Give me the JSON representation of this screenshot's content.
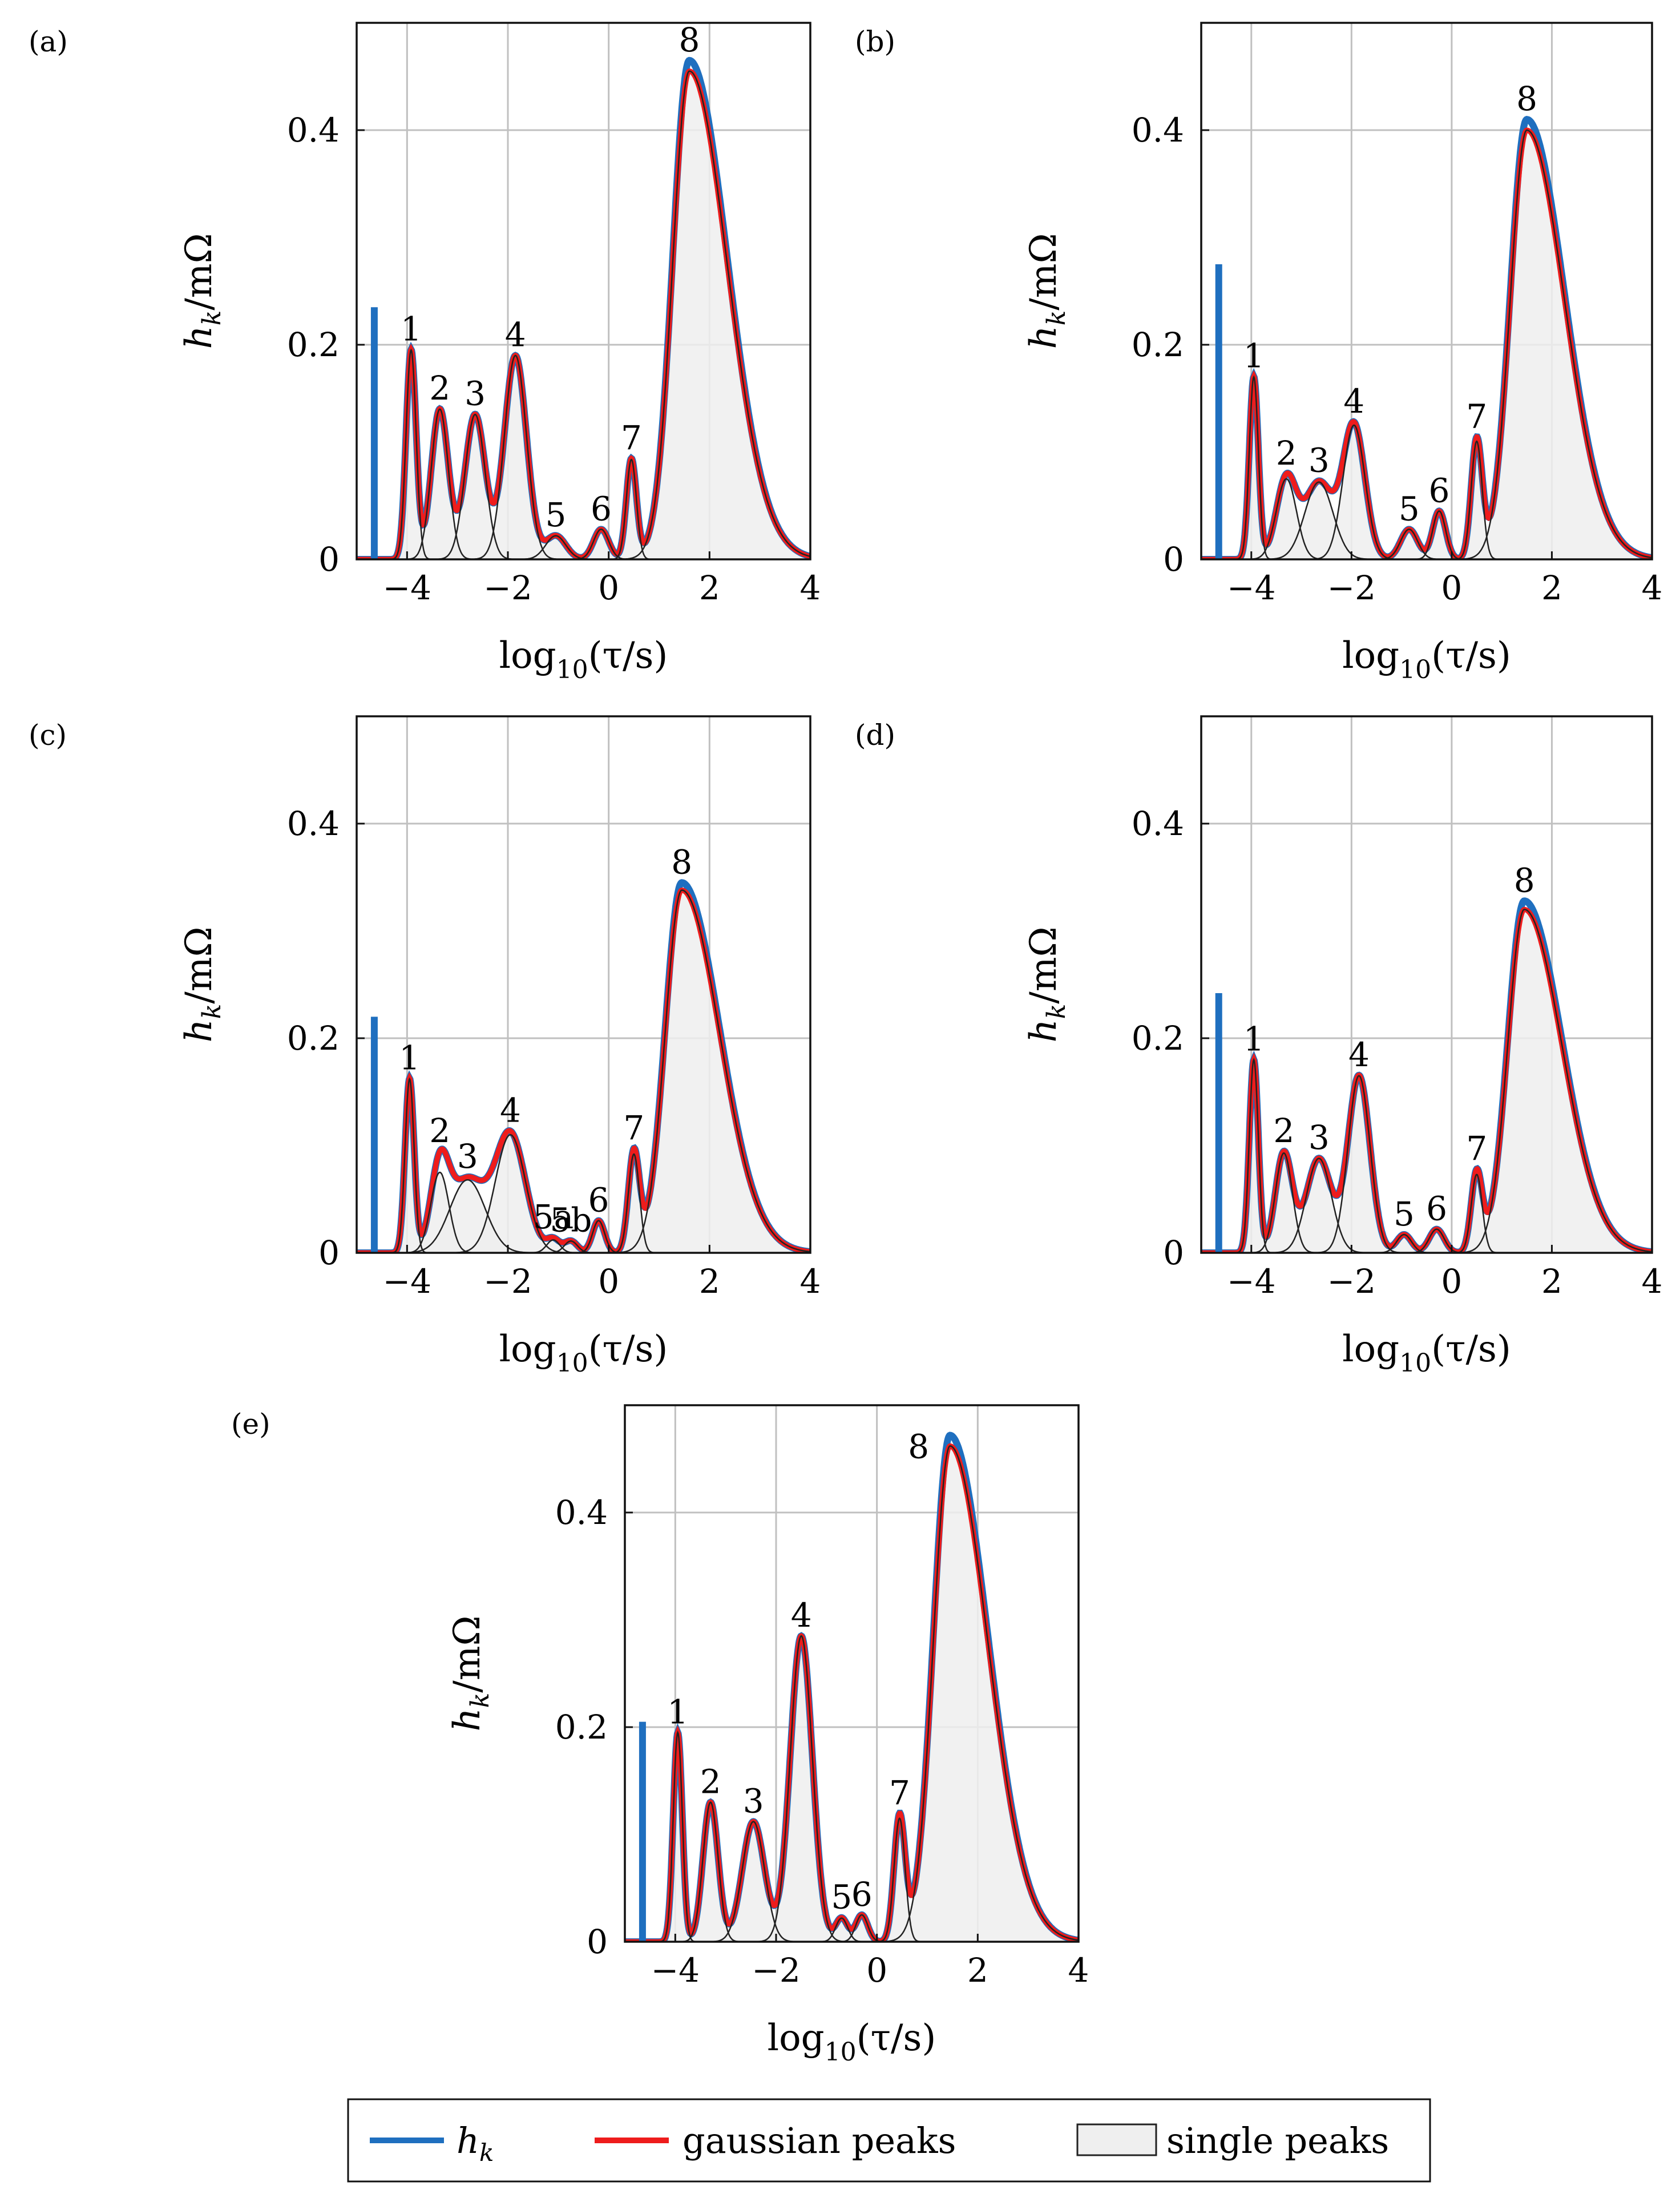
{
  "figure": {
    "legend": {
      "hk": "h",
      "hk_sub": "k",
      "gaussian": "gaussian peaks",
      "single": "single peaks"
    },
    "colors": {
      "hk": "#1f6fbf",
      "gaussian": "#ee1c1c",
      "single_fill": "#efefef",
      "single_stroke": "#222222",
      "grid": "#c0c0c0"
    }
  },
  "chart_data": [
    {
      "type": "line",
      "panel": "(a)",
      "xlabel_main": "log",
      "xlabel_sub": "10",
      "xlabel_rest": "(τ/s)",
      "ylabel_main": "h",
      "ylabel_sub": "k",
      "ylabel_rest": "/mΩ",
      "xlim": [
        -5,
        4
      ],
      "ylim": [
        0,
        0.5
      ],
      "xticks": [
        -4,
        -2,
        0,
        2,
        4
      ],
      "xtick_labels": [
        "−4",
        "−2",
        "0",
        "2",
        "4"
      ],
      "yticks": [
        0,
        0.2,
        0.4
      ],
      "ytick_labels": [
        "0",
        "0.2",
        "0.4"
      ],
      "hk_bar": {
        "x": -4.65,
        "height": 0.235
      },
      "peaks": [
        {
          "name": "1",
          "mu": -3.92,
          "sigma": 0.1,
          "amp": 0.195
        },
        {
          "name": "2",
          "mu": -3.35,
          "sigma": 0.17,
          "amp": 0.14
        },
        {
          "name": "3",
          "mu": -2.65,
          "sigma": 0.2,
          "amp": 0.135
        },
        {
          "name": "4",
          "mu": -1.85,
          "sigma": 0.22,
          "amp": 0.19
        },
        {
          "name": "5",
          "mu": -1.05,
          "sigma": 0.2,
          "amp": 0.022
        },
        {
          "name": "6",
          "mu": -0.15,
          "sigma": 0.15,
          "amp": 0.028
        },
        {
          "name": "7",
          "mu": 0.45,
          "sigma": 0.1,
          "amp": 0.093
        },
        {
          "name": "8",
          "mu": 1.6,
          "sigma_l": 0.33,
          "sigma_r": 0.75,
          "amp": 0.455,
          "hk_amp": 0.465
        }
      ]
    },
    {
      "type": "line",
      "panel": "(b)",
      "xlabel_main": "log",
      "xlabel_sub": "10",
      "xlabel_rest": "(τ/s)",
      "ylabel_main": "h",
      "ylabel_sub": "k",
      "ylabel_rest": "/mΩ",
      "xlim": [
        -5,
        4
      ],
      "ylim": [
        0,
        0.5
      ],
      "xticks": [
        -4,
        -2,
        0,
        2,
        4
      ],
      "xtick_labels": [
        "−4",
        "−2",
        "0",
        "2",
        "4"
      ],
      "yticks": [
        0,
        0.2,
        0.4
      ],
      "ytick_labels": [
        "0",
        "0.2",
        "0.4"
      ],
      "hk_bar": {
        "x": -4.65,
        "height": 0.275
      },
      "peaks": [
        {
          "name": "1",
          "mu": -3.95,
          "sigma": 0.09,
          "amp": 0.17
        },
        {
          "name": "2",
          "mu": -3.3,
          "sigma": 0.2,
          "amp": 0.075
        },
        {
          "name": "3",
          "mu": -2.65,
          "sigma": 0.28,
          "amp": 0.072
        },
        {
          "name": "4",
          "mu": -1.95,
          "sigma": 0.22,
          "amp": 0.125
        },
        {
          "name": "5",
          "mu": -0.85,
          "sigma": 0.17,
          "amp": 0.028
        },
        {
          "name": "6",
          "mu": -0.25,
          "sigma": 0.13,
          "amp": 0.045
        },
        {
          "name": "7",
          "mu": 0.5,
          "sigma": 0.11,
          "amp": 0.11
        },
        {
          "name": "8",
          "mu": 1.5,
          "sigma_l": 0.33,
          "sigma_r": 0.75,
          "amp": 0.4,
          "hk_amp": 0.41
        }
      ]
    },
    {
      "type": "line",
      "panel": "(c)",
      "xlabel_main": "log",
      "xlabel_sub": "10",
      "xlabel_rest": "(τ/s)",
      "ylabel_main": "h",
      "ylabel_sub": "k",
      "ylabel_rest": "/mΩ",
      "xlim": [
        -5,
        4
      ],
      "ylim": [
        0,
        0.5
      ],
      "xticks": [
        -4,
        -2,
        0,
        2,
        4
      ],
      "xtick_labels": [
        "−4",
        "−2",
        "0",
        "2",
        "4"
      ],
      "yticks": [
        0,
        0.2,
        0.4
      ],
      "ytick_labels": [
        "0",
        "0.2",
        "0.4"
      ],
      "hk_bar": {
        "x": -4.65,
        "height": 0.22
      },
      "peaks": [
        {
          "name": "1",
          "mu": -3.95,
          "sigma": 0.09,
          "amp": 0.162
        },
        {
          "name": "2",
          "mu": -3.35,
          "sigma": 0.18,
          "amp": 0.075
        },
        {
          "name": "3",
          "mu": -2.8,
          "sigma": 0.35,
          "amp": 0.068
        },
        {
          "name": "4",
          "mu": -1.95,
          "sigma": 0.3,
          "amp": 0.11
        },
        {
          "name": "5a",
          "mu": -1.1,
          "sigma": 0.13,
          "amp": 0.012
        },
        {
          "name": "5b",
          "mu": -0.75,
          "sigma": 0.13,
          "amp": 0.011
        },
        {
          "name": "6",
          "mu": -0.2,
          "sigma": 0.12,
          "amp": 0.03
        },
        {
          "name": "7",
          "mu": 0.5,
          "sigma": 0.11,
          "amp": 0.092
        },
        {
          "name": "8",
          "mu": 1.45,
          "sigma_l": 0.33,
          "sigma_r": 0.75,
          "amp": 0.338,
          "hk_amp": 0.345
        }
      ]
    },
    {
      "type": "line",
      "panel": "(d)",
      "xlabel_main": "log",
      "xlabel_sub": "10",
      "xlabel_rest": "(τ/s)",
      "ylabel_main": "h",
      "ylabel_sub": "k",
      "ylabel_rest": "/mΩ",
      "xlim": [
        -5,
        4
      ],
      "ylim": [
        0,
        0.5
      ],
      "xticks": [
        -4,
        -2,
        0,
        2,
        4
      ],
      "xtick_labels": [
        "−4",
        "−2",
        "0",
        "2",
        "4"
      ],
      "yticks": [
        0,
        0.2,
        0.4
      ],
      "ytick_labels": [
        "0",
        "0.2",
        "0.4"
      ],
      "hk_bar": {
        "x": -4.65,
        "height": 0.242
      },
      "peaks": [
        {
          "name": "1",
          "mu": -3.95,
          "sigma": 0.09,
          "amp": 0.18
        },
        {
          "name": "2",
          "mu": -3.35,
          "sigma": 0.17,
          "amp": 0.093
        },
        {
          "name": "3",
          "mu": -2.65,
          "sigma": 0.25,
          "amp": 0.088
        },
        {
          "name": "4",
          "mu": -1.85,
          "sigma": 0.22,
          "amp": 0.165
        },
        {
          "name": "5",
          "mu": -0.95,
          "sigma": 0.15,
          "amp": 0.017
        },
        {
          "name": "6",
          "mu": -0.3,
          "sigma": 0.15,
          "amp": 0.022
        },
        {
          "name": "7",
          "mu": 0.5,
          "sigma": 0.11,
          "amp": 0.073
        },
        {
          "name": "8",
          "mu": 1.45,
          "sigma_l": 0.33,
          "sigma_r": 0.75,
          "amp": 0.32,
          "hk_amp": 0.328
        }
      ]
    },
    {
      "type": "line",
      "panel": "(e)",
      "xlabel_main": "log",
      "xlabel_sub": "10",
      "xlabel_rest": "(τ/s)",
      "ylabel_main": "h",
      "ylabel_sub": "k",
      "ylabel_rest": "/mΩ",
      "xlim": [
        -5,
        4
      ],
      "ylim": [
        0,
        0.5
      ],
      "xticks": [
        -4,
        -2,
        0,
        2,
        4
      ],
      "xtick_labels": [
        "−4",
        "−2",
        "0",
        "2",
        "4"
      ],
      "yticks": [
        0,
        0.2,
        0.4
      ],
      "ytick_labels": [
        "0",
        "0.2",
        "0.4"
      ],
      "hk_bar": {
        "x": -4.65,
        "height": 0.205
      },
      "peaks": [
        {
          "name": "1",
          "mu": -3.95,
          "sigma": 0.09,
          "amp": 0.195
        },
        {
          "name": "2",
          "mu": -3.3,
          "sigma": 0.15,
          "amp": 0.13
        },
        {
          "name": "3",
          "mu": -2.45,
          "sigma": 0.22,
          "amp": 0.112
        },
        {
          "name": "4",
          "mu": -1.5,
          "sigma": 0.22,
          "amp": 0.285
        },
        {
          "name": "5",
          "mu": -0.7,
          "sigma": 0.12,
          "amp": 0.022
        },
        {
          "name": "6",
          "mu": -0.3,
          "sigma": 0.12,
          "amp": 0.025
        },
        {
          "name": "7",
          "mu": 0.45,
          "sigma": 0.11,
          "amp": 0.115
        },
        {
          "name": "8",
          "mu": 1.45,
          "sigma_l": 0.33,
          "sigma_r": 0.75,
          "amp": 0.462,
          "hk_amp": 0.472
        }
      ]
    }
  ]
}
